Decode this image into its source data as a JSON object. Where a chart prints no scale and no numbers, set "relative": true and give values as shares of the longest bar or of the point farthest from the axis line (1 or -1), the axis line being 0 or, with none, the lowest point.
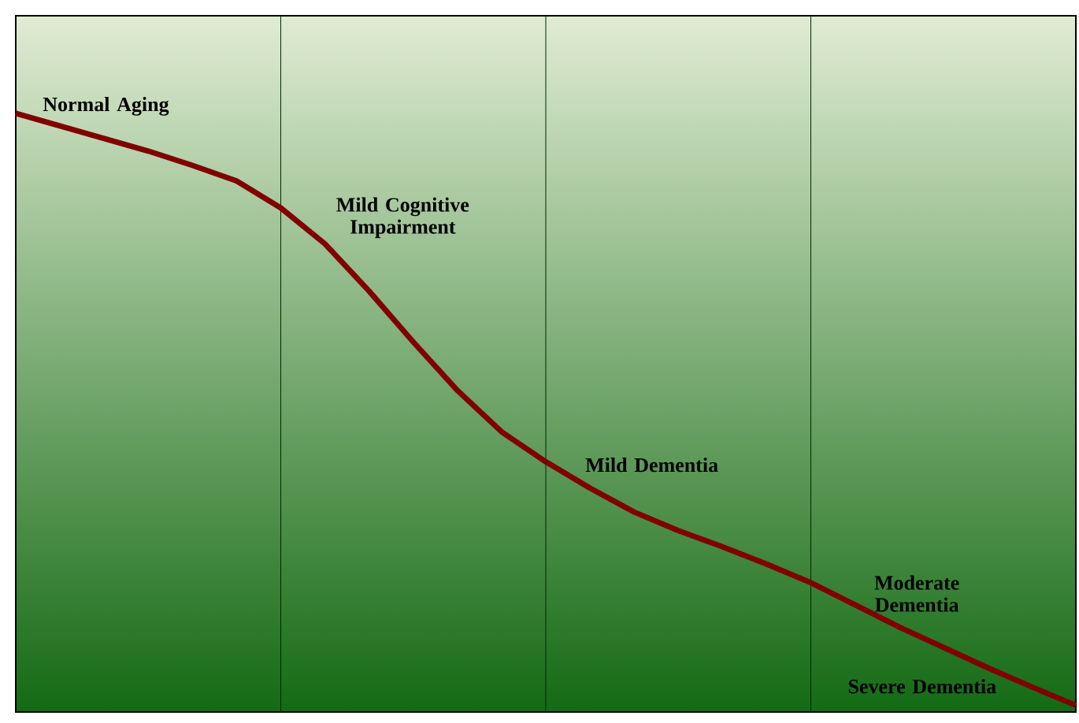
{
  "chart_data": {
    "type": "line",
    "relative": true,
    "categories": [
      null,
      null,
      null,
      null,
      null,
      null,
      null,
      null,
      null,
      null,
      null,
      null,
      null,
      null,
      null,
      null,
      null,
      null,
      null,
      null,
      null,
      null,
      null,
      null,
      null
    ],
    "series": [
      {
        "color": "#800000",
        "values": [
          1.0,
          0.979,
          0.958,
          0.937,
          0.913,
          0.887,
          0.842,
          0.782,
          0.703,
          0.618,
          0.537,
          0.468,
          0.418,
          0.374,
          0.334,
          0.303,
          0.276,
          0.247,
          0.216,
          0.179,
          0.142,
          0.108,
          0.074,
          0.042,
          0.011
        ]
      }
    ],
    "grid": "x",
    "line_style": "solid",
    "marker": "none",
    "annotations": [
      "Normal Aging",
      "Mild Cognitive Impairment",
      "Mild Dementia",
      "Moderate Dementia",
      "Severe Dementia"
    ]
  }
}
